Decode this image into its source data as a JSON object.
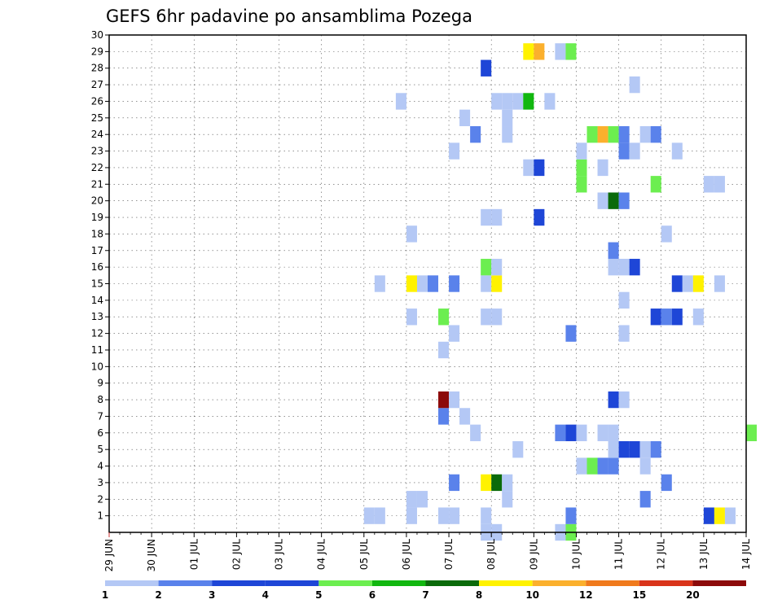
{
  "chart_data": {
    "type": "heatmap",
    "title": "GEFS 6hr padavine po ansamblima Pozega",
    "xlabel": "",
    "ylabel": "",
    "x_tick_labels": [
      "29 JUN",
      "30 JUN",
      "01 JUL",
      "02 JUL",
      "03 JUL",
      "04 JUL",
      "05 JUL",
      "06 JUL",
      "07 JUL",
      "08 JUL",
      "09 JUL",
      "10 JUL",
      "11 JUL",
      "12 JUL",
      "13 JUL",
      "14 JUL"
    ],
    "y_tick_labels": [
      "1",
      "2",
      "3",
      "4",
      "5",
      "6",
      "7",
      "8",
      "9",
      "10",
      "11",
      "12",
      "13",
      "14",
      "15",
      "16",
      "17",
      "18",
      "19",
      "20",
      "21",
      "22",
      "23",
      "24",
      "25",
      "26",
      "27",
      "28",
      "29",
      "30"
    ],
    "xlim": [
      "2025-06-29T00:00",
      "2025-07-14T00:00"
    ],
    "ylim": [
      0,
      30
    ],
    "time_step_hours": 6,
    "grid": true,
    "colorbar": {
      "tick_labels": [
        "1",
        "2",
        "3",
        "4",
        "5",
        "6",
        "7",
        "8",
        "10",
        "12",
        "15",
        "20"
      ],
      "colors": [
        "#b4c8f5",
        "#5a82eb",
        "#1e46d7",
        "#1e46d7",
        "#6cee50",
        "#11b70f",
        "#0a6a0a",
        "#fff200",
        "#fbb02d",
        "#f07a1c",
        "#d9341a",
        "#8c0a0a"
      ]
    },
    "points": [
      [
        "2025-07-05T00:00",
        1,
        1
      ],
      [
        "2025-07-05T06:00",
        1,
        1
      ],
      [
        "2025-07-05T06:00",
        15,
        1
      ],
      [
        "2025-07-05T18:00",
        26,
        1
      ],
      [
        "2025-07-06T00:00",
        1,
        1
      ],
      [
        "2025-07-06T00:00",
        2,
        1
      ],
      [
        "2025-07-06T06:00",
        2,
        1
      ],
      [
        "2025-07-06T00:00",
        13,
        1
      ],
      [
        "2025-07-06T00:00",
        15,
        9
      ],
      [
        "2025-07-06T06:00",
        15,
        1
      ],
      [
        "2025-07-06T12:00",
        15,
        2
      ],
      [
        "2025-07-06T00:00",
        18,
        1
      ],
      [
        "2025-07-06T18:00",
        1,
        1
      ],
      [
        "2025-07-07T00:00",
        1,
        1
      ],
      [
        "2025-07-06T18:00",
        7,
        2
      ],
      [
        "2025-07-06T18:00",
        8,
        20
      ],
      [
        "2025-07-07T00:00",
        8,
        1
      ],
      [
        "2025-07-06T18:00",
        11,
        1
      ],
      [
        "2025-07-07T00:00",
        12,
        1
      ],
      [
        "2025-07-06T18:00",
        13,
        5
      ],
      [
        "2025-07-07T00:00",
        15,
        2
      ],
      [
        "2025-07-07T00:00",
        3,
        2
      ],
      [
        "2025-07-07T00:00",
        23,
        1
      ],
      [
        "2025-07-07T06:00",
        7,
        1
      ],
      [
        "2025-07-07T06:00",
        25,
        1
      ],
      [
        "2025-07-07T12:00",
        6,
        1
      ],
      [
        "2025-07-07T12:00",
        24,
        2
      ],
      [
        "2025-07-07T18:00",
        0,
        1
      ],
      [
        "2025-07-08T00:00",
        0,
        1
      ],
      [
        "2025-07-07T18:00",
        1,
        1
      ],
      [
        "2025-07-07T18:00",
        3,
        8
      ],
      [
        "2025-07-08T00:00",
        3,
        7
      ],
      [
        "2025-07-07T18:00",
        13,
        1
      ],
      [
        "2025-07-08T00:00",
        13,
        1
      ],
      [
        "2025-07-07T18:00",
        15,
        1
      ],
      [
        "2025-07-08T00:00",
        15,
        8
      ],
      [
        "2025-07-07T18:00",
        16,
        5
      ],
      [
        "2025-07-08T00:00",
        16,
        1
      ],
      [
        "2025-07-07T18:00",
        19,
        1
      ],
      [
        "2025-07-08T00:00",
        19,
        1
      ],
      [
        "2025-07-07T18:00",
        28,
        3
      ],
      [
        "2025-07-08T00:00",
        26,
        1
      ],
      [
        "2025-07-08T06:00",
        2,
        1
      ],
      [
        "2025-07-08T06:00",
        3,
        1
      ],
      [
        "2025-07-08T06:00",
        24,
        1
      ],
      [
        "2025-07-08T06:00",
        25,
        1
      ],
      [
        "2025-07-08T06:00",
        26,
        1
      ],
      [
        "2025-07-08T12:00",
        5,
        1
      ],
      [
        "2025-07-08T12:00",
        26,
        1
      ],
      [
        "2025-07-08T18:00",
        22,
        1
      ],
      [
        "2025-07-08T18:00",
        26,
        6
      ],
      [
        "2025-07-08T18:00",
        29,
        8
      ],
      [
        "2025-07-09T00:00",
        29,
        10
      ],
      [
        "2025-07-09T00:00",
        19,
        3
      ],
      [
        "2025-07-09T00:00",
        22,
        3
      ],
      [
        "2025-07-09T06:00",
        26,
        1
      ],
      [
        "2025-07-09T12:00",
        0,
        1
      ],
      [
        "2025-07-09T18:00",
        0,
        5
      ],
      [
        "2025-07-09T18:00",
        1,
        2
      ],
      [
        "2025-07-09T12:00",
        6,
        2
      ],
      [
        "2025-07-09T18:00",
        6,
        3
      ],
      [
        "2025-07-09T18:00",
        12,
        2
      ],
      [
        "2025-07-09T12:00",
        29,
        1
      ],
      [
        "2025-07-09T18:00",
        29,
        5
      ],
      [
        "2025-07-10T00:00",
        4,
        1
      ],
      [
        "2025-07-10T06:00",
        4,
        5
      ],
      [
        "2025-07-10T00:00",
        6,
        1
      ],
      [
        "2025-07-10T00:00",
        21,
        5
      ],
      [
        "2025-07-10T00:00",
        22,
        5
      ],
      [
        "2025-07-10T00:00",
        23,
        1
      ],
      [
        "2025-07-10T06:00",
        24,
        5
      ],
      [
        "2025-07-10T12:00",
        24,
        10
      ],
      [
        "2025-07-10T18:00",
        24,
        5
      ],
      [
        "2025-07-11T00:00",
        24,
        2
      ],
      [
        "2025-07-10T12:00",
        4,
        2
      ],
      [
        "2025-07-10T18:00",
        4,
        2
      ],
      [
        "2025-07-10T12:00",
        6,
        1
      ],
      [
        "2025-07-10T18:00",
        6,
        1
      ],
      [
        "2025-07-10T12:00",
        20,
        1
      ],
      [
        "2025-07-10T18:00",
        20,
        7
      ],
      [
        "2025-07-11T00:00",
        20,
        2
      ],
      [
        "2025-07-10T12:00",
        22,
        1
      ],
      [
        "2025-07-10T18:00",
        5,
        1
      ],
      [
        "2025-07-11T00:00",
        5,
        3
      ],
      [
        "2025-07-11T06:00",
        5,
        3
      ],
      [
        "2025-07-11T12:00",
        5,
        1
      ],
      [
        "2025-07-11T18:00",
        5,
        2
      ],
      [
        "2025-07-10T18:00",
        8,
        3
      ],
      [
        "2025-07-11T00:00",
        8,
        1
      ],
      [
        "2025-07-10T18:00",
        16,
        1
      ],
      [
        "2025-07-11T00:00",
        16,
        1
      ],
      [
        "2025-07-10T18:00",
        17,
        2
      ],
      [
        "2025-07-11T06:00",
        16,
        3
      ],
      [
        "2025-07-11T00:00",
        12,
        1
      ],
      [
        "2025-07-11T00:00",
        14,
        1
      ],
      [
        "2025-07-11T00:00",
        23,
        2
      ],
      [
        "2025-07-11T06:00",
        23,
        1
      ],
      [
        "2025-07-11T12:00",
        24,
        1
      ],
      [
        "2025-07-11T18:00",
        24,
        2
      ],
      [
        "2025-07-11T06:00",
        27,
        1
      ],
      [
        "2025-07-11T12:00",
        2,
        2
      ],
      [
        "2025-07-11T12:00",
        4,
        1
      ],
      [
        "2025-07-11T18:00",
        13,
        3
      ],
      [
        "2025-07-12T00:00",
        13,
        2
      ],
      [
        "2025-07-12T06:00",
        13,
        3
      ],
      [
        "2025-07-11T18:00",
        21,
        5
      ],
      [
        "2025-07-12T00:00",
        3,
        2
      ],
      [
        "2025-07-12T00:00",
        18,
        1
      ],
      [
        "2025-07-12T06:00",
        23,
        1
      ],
      [
        "2025-07-12T06:00",
        15,
        3
      ],
      [
        "2025-07-12T12:00",
        15,
        1
      ],
      [
        "2025-07-12T18:00",
        15,
        8
      ],
      [
        "2025-07-13T06:00",
        15,
        1
      ],
      [
        "2025-07-12T18:00",
        13,
        1
      ],
      [
        "2025-07-13T00:00",
        1,
        3
      ],
      [
        "2025-07-13T06:00",
        1,
        8
      ],
      [
        "2025-07-13T12:00",
        1,
        1
      ],
      [
        "2025-07-13T00:00",
        21,
        1
      ],
      [
        "2025-07-13T06:00",
        21,
        1
      ],
      [
        "2025-07-14T00:00",
        6,
        5
      ]
    ]
  }
}
